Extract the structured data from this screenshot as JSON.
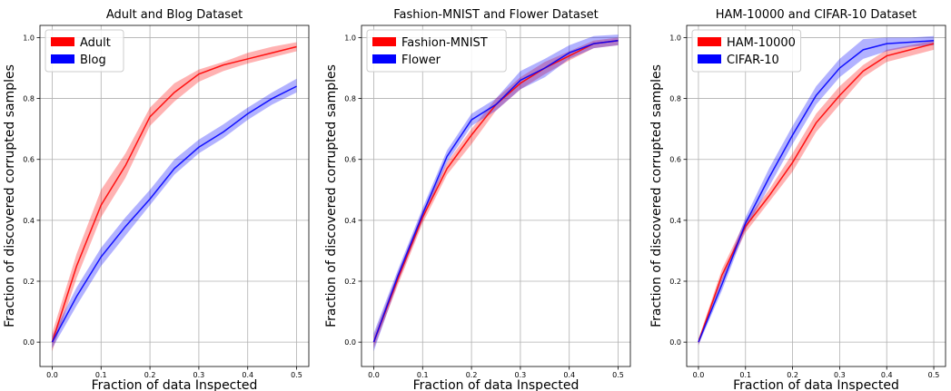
{
  "chart_data": [
    {
      "type": "line",
      "title": "Adult and Blog Dataset",
      "xlabel": "Fraction of data Inspected",
      "ylabel": "Fraction of discovered corrupted samples",
      "xlim": [
        -0.025,
        0.525
      ],
      "ylim": [
        -0.08,
        1.04
      ],
      "xticks": [
        0.0,
        0.1,
        0.2,
        0.3,
        0.4,
        0.5
      ],
      "yticks": [
        0.0,
        0.2,
        0.4,
        0.6,
        0.8,
        1.0
      ],
      "xtick_labels": [
        "0.0",
        "0.1",
        "0.2",
        "0.3",
        "0.4",
        "0.5"
      ],
      "ytick_labels": [
        "0.0",
        "0.2",
        "0.4",
        "0.6",
        "0.8",
        "1.0"
      ],
      "grid": true,
      "legend_position": "top-left",
      "x": [
        0.0,
        0.05,
        0.1,
        0.15,
        0.2,
        0.25,
        0.3,
        0.35,
        0.4,
        0.45,
        0.5
      ],
      "series": [
        {
          "name": "Adult",
          "color": "#ff0000",
          "values": [
            0.0,
            0.25,
            0.45,
            0.58,
            0.74,
            0.82,
            0.88,
            0.91,
            0.93,
            0.95,
            0.97
          ],
          "lower": [
            -0.03,
            0.21,
            0.41,
            0.54,
            0.71,
            0.79,
            0.855,
            0.89,
            0.915,
            0.935,
            0.955
          ],
          "upper": [
            0.03,
            0.29,
            0.5,
            0.62,
            0.77,
            0.85,
            0.895,
            0.92,
            0.95,
            0.97,
            0.985
          ]
        },
        {
          "name": "Blog",
          "color": "#0000ff",
          "values": [
            0.0,
            0.15,
            0.28,
            0.38,
            0.47,
            0.57,
            0.64,
            0.69,
            0.75,
            0.8,
            0.84
          ],
          "lower": [
            -0.02,
            0.12,
            0.25,
            0.35,
            0.45,
            0.55,
            0.62,
            0.67,
            0.73,
            0.78,
            0.82
          ],
          "upper": [
            0.02,
            0.18,
            0.31,
            0.41,
            0.5,
            0.6,
            0.665,
            0.715,
            0.77,
            0.82,
            0.865
          ]
        }
      ]
    },
    {
      "type": "line",
      "title": "Fashion-MNIST and Flower Dataset",
      "xlabel": "Fraction of data Inspected",
      "ylabel": "Fraction of discovered corrupted samples",
      "xlim": [
        -0.025,
        0.525
      ],
      "ylim": [
        -0.08,
        1.04
      ],
      "xticks": [
        0.0,
        0.1,
        0.2,
        0.3,
        0.4,
        0.5
      ],
      "yticks": [
        0.0,
        0.2,
        0.4,
        0.6,
        0.8,
        1.0
      ],
      "xtick_labels": [
        "0.0",
        "0.1",
        "0.2",
        "0.3",
        "0.4",
        "0.5"
      ],
      "ytick_labels": [
        "0.0",
        "0.2",
        "0.4",
        "0.6",
        "0.8",
        "1.0"
      ],
      "grid": true,
      "legend_position": "top-left",
      "x": [
        0.0,
        0.05,
        0.1,
        0.15,
        0.2,
        0.25,
        0.3,
        0.35,
        0.4,
        0.45,
        0.5
      ],
      "series": [
        {
          "name": "Fashion-MNIST",
          "color": "#ff0000",
          "values": [
            0.0,
            0.21,
            0.41,
            0.57,
            0.68,
            0.78,
            0.85,
            0.9,
            0.94,
            0.98,
            0.99
          ],
          "lower": [
            -0.02,
            0.19,
            0.39,
            0.55,
            0.65,
            0.76,
            0.83,
            0.88,
            0.925,
            0.965,
            0.975
          ],
          "upper": [
            0.02,
            0.23,
            0.43,
            0.59,
            0.7,
            0.8,
            0.87,
            0.92,
            0.955,
            0.99,
            1.0
          ]
        },
        {
          "name": "Flower",
          "color": "#0000ff",
          "values": [
            0.0,
            0.22,
            0.42,
            0.61,
            0.73,
            0.78,
            0.86,
            0.9,
            0.95,
            0.98,
            0.99
          ],
          "lower": [
            -0.03,
            0.2,
            0.4,
            0.59,
            0.71,
            0.76,
            0.83,
            0.87,
            0.93,
            0.965,
            0.975
          ],
          "upper": [
            0.03,
            0.24,
            0.44,
            0.63,
            0.75,
            0.8,
            0.89,
            0.93,
            0.975,
            1.005,
            1.01
          ]
        }
      ]
    },
    {
      "type": "line",
      "title": "HAM-10000 and CIFAR-10 Dataset",
      "xlabel": "Fraction of data Inspected",
      "ylabel": "Fraction of discovered corrupted samples",
      "xlim": [
        -0.025,
        0.525
      ],
      "ylim": [
        -0.08,
        1.04
      ],
      "xticks": [
        0.0,
        0.1,
        0.2,
        0.3,
        0.4,
        0.5
      ],
      "yticks": [
        0.0,
        0.2,
        0.4,
        0.6,
        0.8,
        1.0
      ],
      "xtick_labels": [
        "0.0",
        "0.1",
        "0.2",
        "0.3",
        "0.4",
        "0.5"
      ],
      "ytick_labels": [
        "0.0",
        "0.2",
        "0.4",
        "0.6",
        "0.8",
        "1.0"
      ],
      "grid": true,
      "legend_position": "top-left",
      "x": [
        0.0,
        0.05,
        0.1,
        0.15,
        0.2,
        0.25,
        0.3,
        0.35,
        0.4,
        0.45,
        0.5
      ],
      "series": [
        {
          "name": "HAM-10000",
          "color": "#ff0000",
          "values": [
            0.0,
            0.22,
            0.38,
            0.48,
            0.59,
            0.72,
            0.81,
            0.89,
            0.94,
            0.96,
            0.98
          ],
          "lower": [
            -0.01,
            0.2,
            0.36,
            0.46,
            0.56,
            0.69,
            0.78,
            0.87,
            0.92,
            0.94,
            0.96
          ],
          "upper": [
            0.01,
            0.24,
            0.4,
            0.5,
            0.62,
            0.75,
            0.84,
            0.91,
            0.96,
            0.975,
            0.99
          ]
        },
        {
          "name": "CIFAR-10",
          "color": "#0000ff",
          "values": [
            0.0,
            0.19,
            0.39,
            0.54,
            0.68,
            0.81,
            0.9,
            0.96,
            0.98,
            0.985,
            0.99
          ],
          "lower": [
            -0.01,
            0.17,
            0.37,
            0.51,
            0.65,
            0.78,
            0.87,
            0.93,
            0.955,
            0.97,
            0.975
          ],
          "upper": [
            0.01,
            0.21,
            0.41,
            0.57,
            0.71,
            0.84,
            0.93,
            0.995,
            1.0,
            1.0,
            1.005
          ]
        }
      ]
    }
  ]
}
